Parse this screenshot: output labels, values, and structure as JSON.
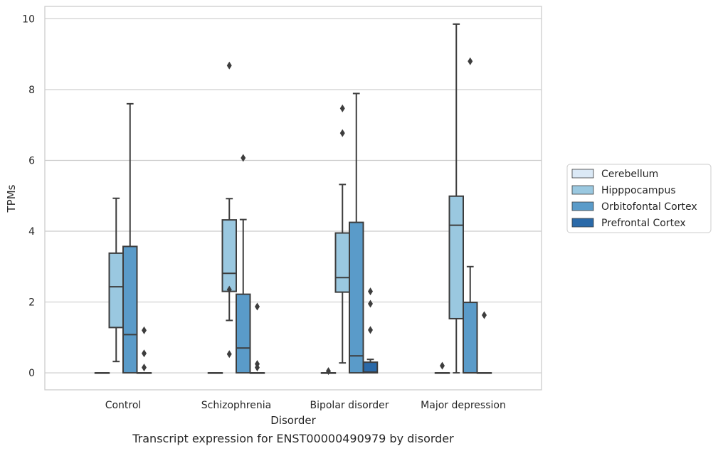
{
  "caption": "Transcript expression for ENST00000490979 by disorder",
  "chart_data": {
    "type": "box",
    "xlabel": "Disorder",
    "ylabel": "TPMs",
    "ylim": [
      -0.48,
      10.35
    ],
    "yticks": [
      0,
      2,
      4,
      6,
      8,
      10
    ],
    "grid": "horizontal",
    "legend_position": "right",
    "categories": [
      "Control",
      "Schizophrenia",
      "Bipolar disorder",
      "Major depression"
    ],
    "series": [
      {
        "name": "Cerebellum",
        "color": "#dbe9f6",
        "boxes": [
          {
            "q1": 0,
            "median": 0,
            "q3": 0,
            "whisker_low": 0,
            "whisker_high": 0,
            "outliers": []
          },
          {
            "q1": 0,
            "median": 0,
            "q3": 0,
            "whisker_low": 0,
            "whisker_high": 0,
            "outliers": []
          },
          {
            "q1": 0,
            "median": 0,
            "q3": 0,
            "whisker_low": 0,
            "whisker_high": 0,
            "outliers": [
              0.05
            ]
          },
          {
            "q1": 0,
            "median": 0,
            "q3": 0,
            "whisker_low": 0,
            "whisker_high": 0,
            "outliers": [
              0.2
            ]
          }
        ]
      },
      {
        "name": "Hipppocampus",
        "color": "#9ac8e0",
        "boxes": [
          {
            "q1": 1.28,
            "median": 2.43,
            "q3": 3.38,
            "whisker_low": 0.32,
            "whisker_high": 4.93,
            "outliers": []
          },
          {
            "q1": 2.3,
            "median": 2.81,
            "q3": 4.32,
            "whisker_low": 1.48,
            "whisker_high": 4.92,
            "outliers": [
              8.68,
              2.35,
              0.53
            ]
          },
          {
            "q1": 2.28,
            "median": 2.69,
            "q3": 3.95,
            "whisker_low": 0.28,
            "whisker_high": 5.32,
            "outliers": [
              7.47,
              6.77
            ]
          },
          {
            "q1": 1.53,
            "median": 4.17,
            "q3": 4.99,
            "whisker_low": 0,
            "whisker_high": 9.85,
            "outliers": []
          }
        ]
      },
      {
        "name": "Orbitofontal Cortex",
        "color": "#5a9bc9",
        "boxes": [
          {
            "q1": 0,
            "median": 1.08,
            "q3": 3.57,
            "whisker_low": 0,
            "whisker_high": 7.6,
            "outliers": []
          },
          {
            "q1": 0,
            "median": 0.7,
            "q3": 2.22,
            "whisker_low": 0,
            "whisker_high": 4.33,
            "outliers": [
              6.07
            ]
          },
          {
            "q1": 0,
            "median": 0.48,
            "q3": 4.25,
            "whisker_low": 0,
            "whisker_high": 7.89,
            "outliers": []
          },
          {
            "q1": 0,
            "median": 0,
            "q3": 1.99,
            "whisker_low": 0,
            "whisker_high": 3.0,
            "outliers": [
              8.8
            ]
          }
        ]
      },
      {
        "name": "Prefrontal Cortex",
        "color": "#2a69a8",
        "boxes": [
          {
            "q1": 0,
            "median": 0,
            "q3": 0,
            "whisker_low": 0,
            "whisker_high": 0,
            "outliers": [
              1.2,
              0.55,
              0.15
            ]
          },
          {
            "q1": 0,
            "median": 0,
            "q3": 0,
            "whisker_low": 0,
            "whisker_high": 0,
            "outliers": [
              1.87,
              0.25,
              0.15
            ]
          },
          {
            "q1": 0,
            "median": 0.02,
            "q3": 0.3,
            "whisker_low": 0,
            "whisker_high": 0.38,
            "outliers": [
              2.3,
              1.95,
              1.21
            ]
          },
          {
            "q1": 0,
            "median": 0,
            "q3": 0,
            "whisker_low": 0,
            "whisker_high": 0,
            "outliers": [
              1.63
            ]
          }
        ]
      }
    ]
  }
}
